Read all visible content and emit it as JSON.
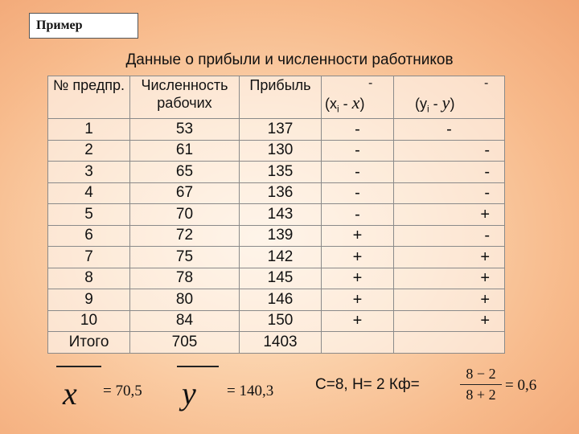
{
  "badge": "Пример",
  "title": "Данные о прибыли и численности работников",
  "table": {
    "headers": {
      "num": "№ предпр.",
      "workers": "Численность рабочих",
      "profit": "Прибыль",
      "dev_x_bar": "-",
      "dev_x_open": "(x",
      "dev_x_sub": "i",
      "dev_x_minus": " - ",
      "dev_x_var": "x",
      "dev_x_close": ")",
      "dev_y_bar": "-",
      "dev_y_open": "(y",
      "dev_y_sub": "i",
      "dev_y_minus": " - ",
      "dev_y_var": "y",
      "dev_y_close": ")"
    },
    "rows": [
      {
        "n": "1",
        "w": "53",
        "p": "137",
        "sx": "-",
        "sy": "-"
      },
      {
        "n": "2",
        "w": "61",
        "p": "130",
        "sx": "-",
        "sy": "-"
      },
      {
        "n": "3",
        "w": "65",
        "p": "135",
        "sx": "-",
        "sy": "-"
      },
      {
        "n": "4",
        "w": "67",
        "p": "136",
        "sx": "-",
        "sy": "-"
      },
      {
        "n": "5",
        "w": "70",
        "p": "143",
        "sx": "-",
        "sy": "+"
      },
      {
        "n": "6",
        "w": "72",
        "p": "139",
        "sx": "+",
        "sy": "-"
      },
      {
        "n": "7",
        "w": "75",
        "p": "142",
        "sx": "+",
        "sy": "+"
      },
      {
        "n": "8",
        "w": "78",
        "p": "145",
        "sx": "+",
        "sy": "+"
      },
      {
        "n": "9",
        "w": "80",
        "p": "146",
        "sx": "+",
        "sy": "+"
      },
      {
        "n": "10",
        "w": "84",
        "p": "150",
        "sx": "+",
        "sy": "+"
      }
    ],
    "total": {
      "label": "Итого",
      "w": "705",
      "p": "1403"
    }
  },
  "stats": {
    "x_symbol": "x",
    "x_value": "= 70,5",
    "y_symbol": "y",
    "y_value": "= 140,3",
    "cn": "С=8,  Н= 2  Кф=",
    "frac_num": "8 − 2",
    "frac_den": "8 + 2",
    "frac_result": "= 0,6"
  }
}
